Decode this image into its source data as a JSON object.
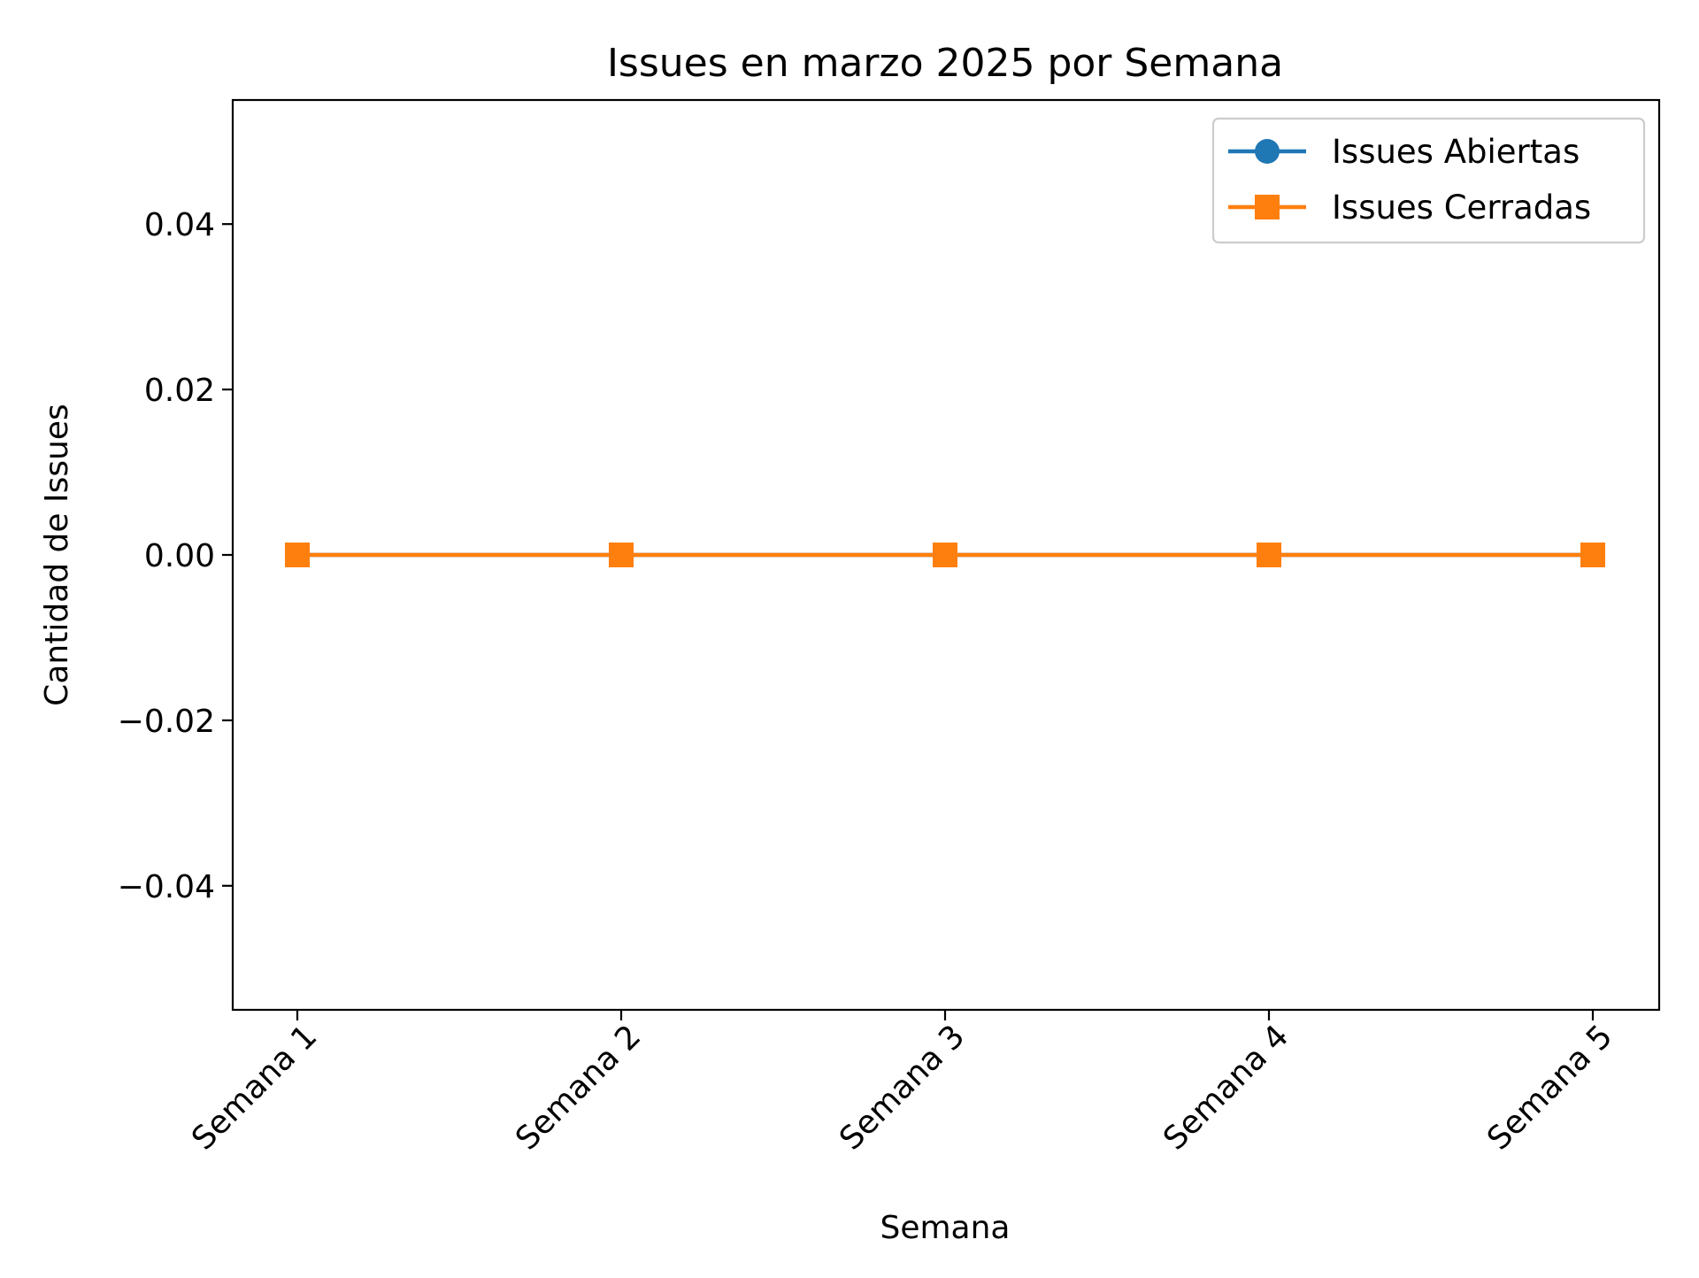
{
  "chart_data": {
    "type": "line",
    "title": "Issues en marzo 2025 por Semana",
    "xlabel": "Semana",
    "ylabel": "Cantidad de Issues",
    "categories": [
      "Semana 1",
      "Semana 2",
      "Semana 3",
      "Semana 4",
      "Semana 5"
    ],
    "ylim": [
      -0.055,
      0.055
    ],
    "yticks": [
      -0.04,
      -0.02,
      0.0,
      0.02,
      0.04
    ],
    "ytick_labels": [
      "−0.04",
      "−0.02",
      "0.00",
      "0.02",
      "0.04"
    ],
    "grid": false,
    "legend_position": "top-right",
    "series": [
      {
        "name": "Issues Abiertas",
        "values": [
          0,
          0,
          0,
          0,
          0
        ],
        "color": "#1f77b4",
        "marker": "circle"
      },
      {
        "name": "Issues Cerradas",
        "values": [
          0,
          0,
          0,
          0,
          0
        ],
        "color": "#ff7f0e",
        "marker": "square"
      }
    ]
  }
}
